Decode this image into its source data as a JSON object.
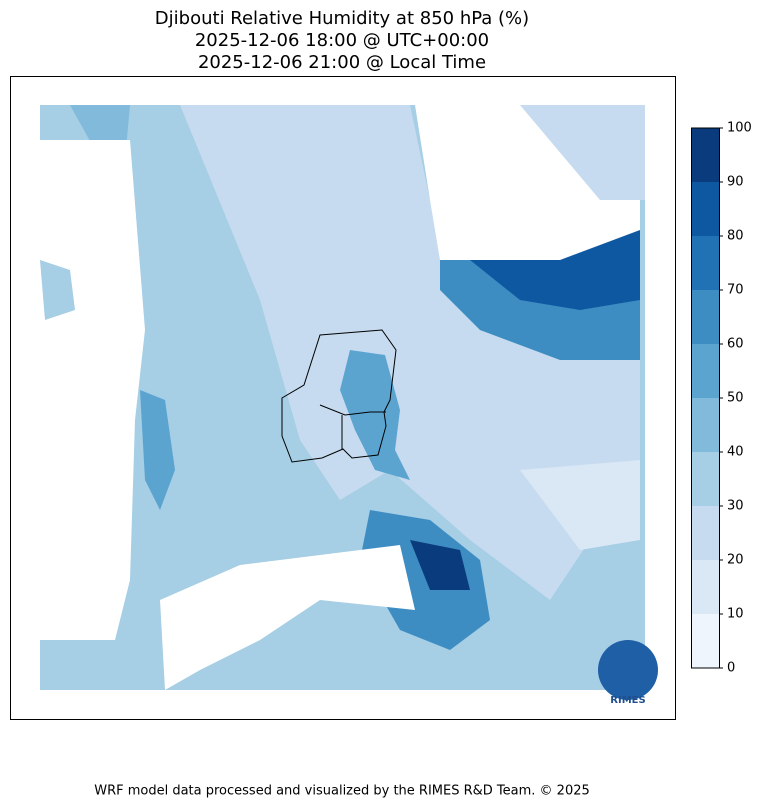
{
  "title": [
    "Djibouti Relative Humidity at 850 hPa (%)",
    "2025-12-06 18:00 @ UTC+00:00",
    "2025-12-06 21:00 @ Local Time"
  ],
  "colorbar": {
    "lim": [
      0,
      100
    ],
    "levels": [
      0,
      10,
      20,
      30,
      40,
      50,
      60,
      70,
      80,
      90,
      100
    ],
    "colors": [
      "#eef5fc",
      "#dae8f5",
      "#c6dbef",
      "#a6cee4",
      "#82badb",
      "#5ca4d0",
      "#3d8dc3",
      "#2171b5",
      "#0d58a1",
      "#0a3b7c"
    ],
    "ticks": [
      0,
      10,
      20,
      30,
      40,
      50,
      60,
      70,
      80,
      90,
      100
    ]
  },
  "logo": "RIMES",
  "footer": "WRF model data processed and visualized by the RIMES R&D Team. © 2025"
}
